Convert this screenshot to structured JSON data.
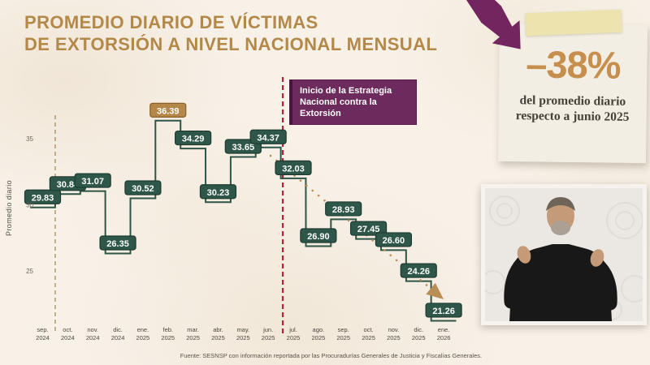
{
  "title": {
    "line1": "PROMEDIO DIARIO DE VÍCTIMAS",
    "line2": "DE EXTORSIÓN A NIVEL NACIONAL MENSUAL"
  },
  "annotation": {
    "line1": "Inicio de la Estrategia",
    "line2": "Nacional contra la Extorsión"
  },
  "highlight_card": {
    "value": "–38%",
    "description": "del promedio diario respecto a junio 2025"
  },
  "source": "Fuente: SESNSP con información reportada por las Procuradurías Generales de Justicia y Fiscalías Generales.",
  "icons": {
    "down_trend_arrow": "thick purple crooked arrow pointing down-right",
    "tape": "adhesive tape strip decoration",
    "interpreter": "sign language interpreter video inset"
  },
  "colors": {
    "background_cream": "#f8f1e8",
    "title_gold": "#b3894a",
    "accent_green": "#2e5546",
    "label_box_green": "#2e574a",
    "label_box_gold": "#b5884a",
    "strategy_purple": "#6d2a5c",
    "arrow_purple": "#72255e",
    "alert_red_dashed": "#a8293c",
    "divider_tan_dashed": "#b79d72",
    "trend_dotted_gold": "#b98f56",
    "highlight_gold": "#c68f4d",
    "axis_text": "#55504a"
  },
  "chart_data": {
    "type": "line",
    "subtype": "step",
    "title": "Promedio diario de víctimas de extorsión a nivel nacional mensual",
    "xlabel": "",
    "ylabel": "Promedio diario",
    "yticks": [
      25,
      30,
      35
    ],
    "ylim": [
      20,
      38
    ],
    "grid": false,
    "legend": false,
    "categories": [
      "sep. 2024",
      "oct. 2024",
      "nov. 2024",
      "dic. 2024",
      "ene. 2025",
      "feb. 2025",
      "mar. 2025",
      "abr. 2025",
      "may. 2025",
      "jun. 2025",
      "jul. 2025",
      "ago. 2025",
      "sep. 2025",
      "oct. 2025",
      "nov. 2025",
      "dic. 2025",
      "ene. 2026"
    ],
    "values": [
      29.83,
      30.84,
      31.07,
      26.35,
      30.52,
      36.39,
      34.29,
      30.23,
      33.65,
      34.37,
      32.03,
      26.9,
      28.93,
      27.45,
      26.6,
      24.26,
      21.26
    ],
    "labels": [
      "29.83",
      "30.84",
      "31.07",
      "26.35",
      "30.52",
      "36.39",
      "34.29",
      "30.23",
      "33.65",
      "34.37",
      "32.03",
      "26.90",
      "28.93",
      "27.45",
      "26.60",
      "24.26",
      "21.26"
    ],
    "peak_index": 5,
    "reference_lines": [
      {
        "between": [
          "sep. 2024",
          "oct. 2024"
        ],
        "style": "dashed-tan"
      },
      {
        "between": [
          "jun. 2025",
          "jul. 2025"
        ],
        "style": "dashed-red",
        "annotation": "Inicio de la Estrategia Nacional contra la Extorsión"
      }
    ],
    "trend_line": {
      "style": "dotted-arrow",
      "from": "jun. 2025",
      "to": "ene. 2026",
      "direction": "down"
    }
  }
}
